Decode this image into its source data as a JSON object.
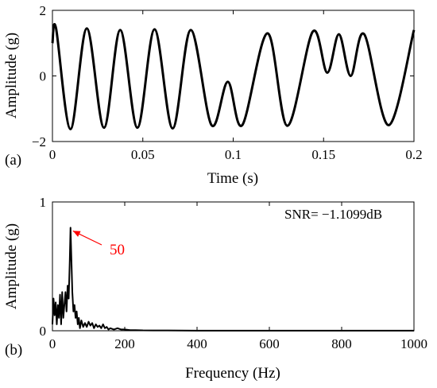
{
  "chart_data": [
    {
      "type": "line",
      "panel_label": "(a)",
      "xlabel": "Time (s)",
      "ylabel": "Amplitude (g)",
      "xlim": [
        0,
        0.2
      ],
      "ylim": [
        -2,
        2
      ],
      "xticks": [
        "0",
        "0.05",
        "0.1",
        "0.15",
        "0.2"
      ],
      "yticks": [
        "-2",
        "0",
        "2"
      ],
      "grid": false,
      "series": [
        {
          "x": [
            0.0,
            0.002,
            0.01,
            0.019,
            0.0285,
            0.0375,
            0.047,
            0.0565,
            0.0665,
            0.0765,
            0.088,
            0.097,
            0.105,
            0.119,
            0.13,
            0.144,
            0.152,
            0.1585,
            0.165,
            0.1725,
            0.186,
            0.2
          ],
          "y": [
            1.0,
            1.45,
            -1.62,
            1.45,
            -1.58,
            1.4,
            -1.58,
            1.42,
            -1.6,
            1.4,
            -1.5,
            -0.18,
            -1.5,
            1.3,
            -1.52,
            1.35,
            0.1,
            1.27,
            0.0,
            1.27,
            -1.5,
            1.4
          ]
        }
      ]
    },
    {
      "type": "line",
      "panel_label": "(b)",
      "xlabel": "Frequency (Hz)",
      "ylabel": "Amplitude (g)",
      "xlim": [
        0,
        1000
      ],
      "ylim": [
        0,
        1
      ],
      "xticks": [
        "0",
        "200",
        "400",
        "600",
        "800",
        "1000"
      ],
      "yticks": [
        "0",
        "1"
      ],
      "grid": false,
      "annotation": {
        "text": "50",
        "x": 50,
        "y": 0.8,
        "color": "#ff0000"
      },
      "snr_text": "SNR= −1.1099dB",
      "series": [
        {
          "x": [
            0,
            3,
            6,
            9,
            12,
            15,
            18,
            21,
            24,
            27,
            30,
            33,
            36,
            39,
            42,
            45,
            48,
            50,
            52,
            55,
            58,
            61,
            64,
            67,
            70,
            73,
            76,
            80,
            85,
            90,
            95,
            100,
            105,
            110,
            115,
            120,
            125,
            130,
            135,
            140,
            145,
            150,
            155,
            160,
            170,
            180,
            190,
            200,
            215,
            230,
            250,
            280,
            320,
            400,
            500,
            600,
            700,
            800,
            900,
            1000
          ],
          "y": [
            0.05,
            0.25,
            0.12,
            0.22,
            0.05,
            0.2,
            0.1,
            0.28,
            0.05,
            0.3,
            0.1,
            0.2,
            0.3,
            0.15,
            0.35,
            0.25,
            0.55,
            0.8,
            0.6,
            0.3,
            0.15,
            0.2,
            0.1,
            0.15,
            0.05,
            0.1,
            0.02,
            0.08,
            0.03,
            0.06,
            0.03,
            0.07,
            0.04,
            0.06,
            0.02,
            0.05,
            0.03,
            0.04,
            0.02,
            0.05,
            0.02,
            0.03,
            0.01,
            0.02,
            0.01,
            0.02,
            0.01,
            0.01,
            0.005,
            0.005,
            0.003,
            0.002,
            0.002,
            0.001,
            0.001,
            0.001,
            0.001,
            0.001,
            0.001,
            0.001
          ]
        }
      ]
    }
  ]
}
